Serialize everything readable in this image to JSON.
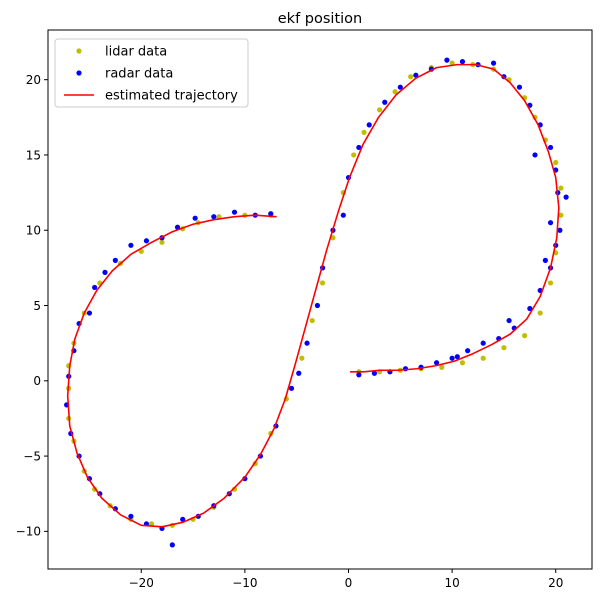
{
  "chart_data": {
    "type": "scatter",
    "title": "ekf position",
    "xlabel": "",
    "ylabel": "",
    "xlim": [
      -29,
      23.5
    ],
    "ylim": [
      -12.5,
      23.3
    ],
    "xticks": [
      -20,
      -10,
      0,
      10,
      20
    ],
    "yticks": [
      -10,
      -5,
      0,
      5,
      10,
      15,
      20
    ],
    "grid": false,
    "legend_position": "top-left",
    "series": [
      {
        "name": "lidar data",
        "kind": "points",
        "color": "#bfbf00",
        "points": [
          [
            -7.5,
            11.0
          ],
          [
            -10.0,
            11.0
          ],
          [
            -12.5,
            10.9
          ],
          [
            -14.5,
            10.5
          ],
          [
            -16.0,
            10.1
          ],
          [
            -18.0,
            9.2
          ],
          [
            -20.0,
            8.6
          ],
          [
            -22.0,
            7.8
          ],
          [
            -24.0,
            6.5
          ],
          [
            -25.5,
            4.5
          ],
          [
            -26.5,
            2.5
          ],
          [
            -27.0,
            1.0
          ],
          [
            -27.0,
            -0.5
          ],
          [
            -27.0,
            -2.5
          ],
          [
            -26.5,
            -4.0
          ],
          [
            -25.5,
            -6.0
          ],
          [
            -24.5,
            -7.2
          ],
          [
            -23.0,
            -8.3
          ],
          [
            -21.0,
            -9.2
          ],
          [
            -19.0,
            -9.5
          ],
          [
            -17.0,
            -9.6
          ],
          [
            -15.0,
            -9.2
          ],
          [
            -13.0,
            -8.4
          ],
          [
            -11.0,
            -7.2
          ],
          [
            -9.0,
            -5.5
          ],
          [
            -7.5,
            -3.5
          ],
          [
            -6.0,
            -1.2
          ],
          [
            -4.5,
            1.5
          ],
          [
            -3.5,
            4.0
          ],
          [
            -2.5,
            6.5
          ],
          [
            -1.5,
            9.5
          ],
          [
            -0.5,
            12.5
          ],
          [
            0.5,
            15.0
          ],
          [
            1.5,
            16.5
          ],
          [
            3.0,
            18.0
          ],
          [
            4.5,
            19.2
          ],
          [
            6.0,
            20.2
          ],
          [
            8.0,
            20.8
          ],
          [
            10.0,
            21.1
          ],
          [
            12.0,
            21.0
          ],
          [
            14.0,
            20.7
          ],
          [
            15.5,
            20.0
          ],
          [
            17.0,
            18.8
          ],
          [
            18.0,
            17.5
          ],
          [
            19.0,
            16.0
          ],
          [
            20.0,
            14.5
          ],
          [
            20.5,
            12.8
          ],
          [
            20.5,
            11.0
          ],
          [
            20.0,
            8.5
          ],
          [
            19.5,
            6.5
          ],
          [
            18.5,
            4.5
          ],
          [
            17.0,
            3.0
          ],
          [
            15.0,
            2.2
          ],
          [
            13.0,
            1.5
          ],
          [
            11.0,
            1.2
          ],
          [
            9.0,
            0.9
          ],
          [
            7.0,
            0.8
          ],
          [
            5.0,
            0.7
          ],
          [
            3.0,
            0.6
          ],
          [
            1.0,
            0.6
          ]
        ]
      },
      {
        "name": "radar data",
        "kind": "points",
        "color": "#0000ff",
        "points": [
          [
            -7.5,
            11.1
          ],
          [
            -9.0,
            11.0
          ],
          [
            -11.0,
            11.2
          ],
          [
            -13.0,
            10.9
          ],
          [
            -14.8,
            10.8
          ],
          [
            -16.5,
            10.2
          ],
          [
            -18.0,
            9.5
          ],
          [
            -19.5,
            9.3
          ],
          [
            -21.0,
            9.0
          ],
          [
            -22.5,
            8.0
          ],
          [
            -23.5,
            7.2
          ],
          [
            -24.5,
            6.2
          ],
          [
            -25.0,
            4.5
          ],
          [
            -26.0,
            3.8
          ],
          [
            -26.5,
            2.0
          ],
          [
            -27.0,
            0.3
          ],
          [
            -27.2,
            -1.6
          ],
          [
            -26.8,
            -3.5
          ],
          [
            -26.0,
            -5.0
          ],
          [
            -25.0,
            -6.5
          ],
          [
            -24.0,
            -7.5
          ],
          [
            -22.5,
            -8.5
          ],
          [
            -21.0,
            -9.0
          ],
          [
            -19.5,
            -9.5
          ],
          [
            -18.0,
            -9.8
          ],
          [
            -17.0,
            -10.9
          ],
          [
            -16.0,
            -9.2
          ],
          [
            -14.5,
            -9.0
          ],
          [
            -13.0,
            -8.3
          ],
          [
            -11.5,
            -7.5
          ],
          [
            -10.0,
            -6.5
          ],
          [
            -8.5,
            -5.0
          ],
          [
            -7.0,
            -3.0
          ],
          [
            -5.5,
            -0.5
          ],
          [
            -4.8,
            0.5
          ],
          [
            -4.0,
            2.5
          ],
          [
            -3.0,
            5.0
          ],
          [
            -2.5,
            7.5
          ],
          [
            -1.5,
            10.0
          ],
          [
            -0.5,
            11.0
          ],
          [
            0.0,
            13.5
          ],
          [
            1.0,
            15.5
          ],
          [
            2.0,
            17.0
          ],
          [
            3.5,
            18.5
          ],
          [
            5.0,
            19.5
          ],
          [
            6.5,
            20.3
          ],
          [
            8.0,
            20.7
          ],
          [
            9.5,
            21.3
          ],
          [
            11.0,
            21.2
          ],
          [
            12.5,
            21.0
          ],
          [
            14.0,
            21.1
          ],
          [
            15.0,
            20.2
          ],
          [
            16.5,
            19.5
          ],
          [
            17.5,
            18.3
          ],
          [
            18.5,
            17.0
          ],
          [
            19.5,
            15.5
          ],
          [
            20.0,
            14.0
          ],
          [
            20.2,
            12.5
          ],
          [
            21.0,
            12.2
          ],
          [
            19.5,
            10.5
          ],
          [
            20.0,
            9.0
          ],
          [
            19.5,
            7.5
          ],
          [
            18.5,
            6.0
          ],
          [
            17.5,
            4.8
          ],
          [
            16.0,
            3.5
          ],
          [
            14.5,
            2.8
          ],
          [
            13.0,
            2.5
          ],
          [
            11.5,
            2.0
          ],
          [
            10.0,
            1.5
          ],
          [
            8.5,
            1.2
          ],
          [
            7.0,
            0.9
          ],
          [
            5.5,
            0.8
          ],
          [
            4.0,
            0.6
          ],
          [
            2.5,
            0.5
          ],
          [
            1.0,
            0.4
          ],
          [
            10.5,
            1.6
          ],
          [
            15.5,
            4.0
          ],
          [
            19.0,
            8.0
          ],
          [
            20.4,
            10.0
          ],
          [
            18.0,
            15.0
          ]
        ]
      },
      {
        "name": "estimated trajectory",
        "kind": "line",
        "color": "#ff0000",
        "points": [
          [
            -7.0,
            10.9
          ],
          [
            -9.0,
            11.0
          ],
          [
            -11.0,
            10.9
          ],
          [
            -13.0,
            10.7
          ],
          [
            -15.0,
            10.4
          ],
          [
            -17.0,
            9.9
          ],
          [
            -19.0,
            9.2
          ],
          [
            -21.0,
            8.4
          ],
          [
            -22.8,
            7.3
          ],
          [
            -24.3,
            6.0
          ],
          [
            -25.5,
            4.5
          ],
          [
            -26.4,
            2.8
          ],
          [
            -26.9,
            1.0
          ],
          [
            -27.1,
            -1.0
          ],
          [
            -26.9,
            -3.0
          ],
          [
            -26.2,
            -4.8
          ],
          [
            -25.2,
            -6.4
          ],
          [
            -23.8,
            -7.8
          ],
          [
            -22.0,
            -8.9
          ],
          [
            -20.0,
            -9.6
          ],
          [
            -18.0,
            -9.7
          ],
          [
            -16.0,
            -9.4
          ],
          [
            -14.0,
            -8.8
          ],
          [
            -12.0,
            -7.8
          ],
          [
            -10.0,
            -6.4
          ],
          [
            -8.5,
            -4.9
          ],
          [
            -7.2,
            -3.2
          ],
          [
            -6.1,
            -1.2
          ],
          [
            -5.1,
            1.2
          ],
          [
            -4.1,
            3.7
          ],
          [
            -3.1,
            6.2
          ],
          [
            -2.1,
            8.7
          ],
          [
            -1.0,
            11.2
          ],
          [
            0.1,
            13.5
          ],
          [
            1.4,
            15.7
          ],
          [
            2.9,
            17.5
          ],
          [
            4.6,
            19.0
          ],
          [
            6.5,
            20.1
          ],
          [
            8.5,
            20.8
          ],
          [
            10.5,
            21.0
          ],
          [
            12.3,
            21.0
          ],
          [
            14.0,
            20.7
          ],
          [
            15.6,
            19.8
          ],
          [
            17.0,
            18.6
          ],
          [
            18.3,
            17.0
          ],
          [
            19.3,
            15.2
          ],
          [
            20.0,
            13.5
          ],
          [
            20.3,
            11.5
          ],
          [
            20.1,
            9.5
          ],
          [
            19.5,
            7.5
          ],
          [
            18.5,
            5.6
          ],
          [
            17.2,
            4.1
          ],
          [
            15.6,
            3.1
          ],
          [
            13.8,
            2.4
          ],
          [
            12.0,
            1.8
          ],
          [
            10.2,
            1.3
          ],
          [
            8.4,
            1.0
          ],
          [
            6.6,
            0.8
          ],
          [
            4.8,
            0.7
          ],
          [
            3.0,
            0.7
          ],
          [
            1.5,
            0.6
          ],
          [
            0.2,
            0.6
          ]
        ]
      }
    ]
  }
}
